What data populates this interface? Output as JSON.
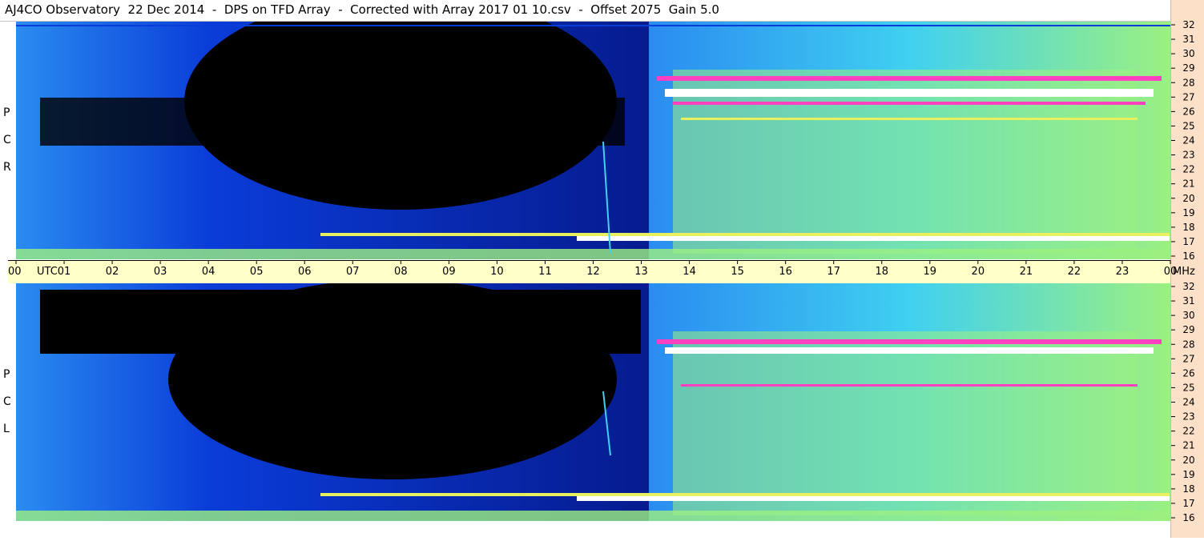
{
  "header": {
    "title": "AJ4CO Observatory  22 Dec 2014  -  DPS on TFD Array  -  Corrected with Array 2017 01 10.csv  -  Offset 2075  Gain 5.0"
  },
  "chart_data": [
    {
      "type": "heatmap",
      "panel": "RCP",
      "side_label": [
        "R",
        "C",
        "P"
      ],
      "x": {
        "label": "UTC",
        "range": [
          0,
          24
        ],
        "tick_labels": [
          "00",
          "01",
          "02",
          "03",
          "04",
          "05",
          "06",
          "07",
          "08",
          "09",
          "10",
          "11",
          "12",
          "13",
          "14",
          "15",
          "16",
          "17",
          "18",
          "19",
          "20",
          "21",
          "22",
          "23",
          "00"
        ]
      },
      "y": {
        "label": "MHz",
        "range": [
          16,
          32
        ],
        "tick_labels": [
          "16",
          "17",
          "18",
          "19",
          "20",
          "21",
          "22",
          "23",
          "24",
          "25",
          "26",
          "27",
          "28",
          "29",
          "30",
          "31",
          "32"
        ]
      },
      "colors": {
        "black": "#000000",
        "dark_blue": "#061a8c",
        "blue": "#0a3cd8",
        "light_blue": "#2a8cf0",
        "cyan": "#40d0f0",
        "green": "#9cf080",
        "yellow": "#e8f060",
        "magenta": "#ff40c0",
        "white": "#ffffff"
      }
    },
    {
      "type": "heatmap",
      "panel": "LCP",
      "side_label": [
        "L",
        "C",
        "P"
      ],
      "x": {
        "label": "UTC",
        "range": [
          0,
          24
        ]
      },
      "y": {
        "label": "MHz",
        "range": [
          16,
          32
        ],
        "tick_labels": [
          "16",
          "17",
          "18",
          "19",
          "20",
          "21",
          "22",
          "23",
          "24",
          "25",
          "26",
          "27",
          "28",
          "29",
          "30",
          "31",
          "32"
        ]
      }
    }
  ],
  "axis": {
    "utc_unit": "UTC",
    "mhz_unit": "MHz"
  }
}
